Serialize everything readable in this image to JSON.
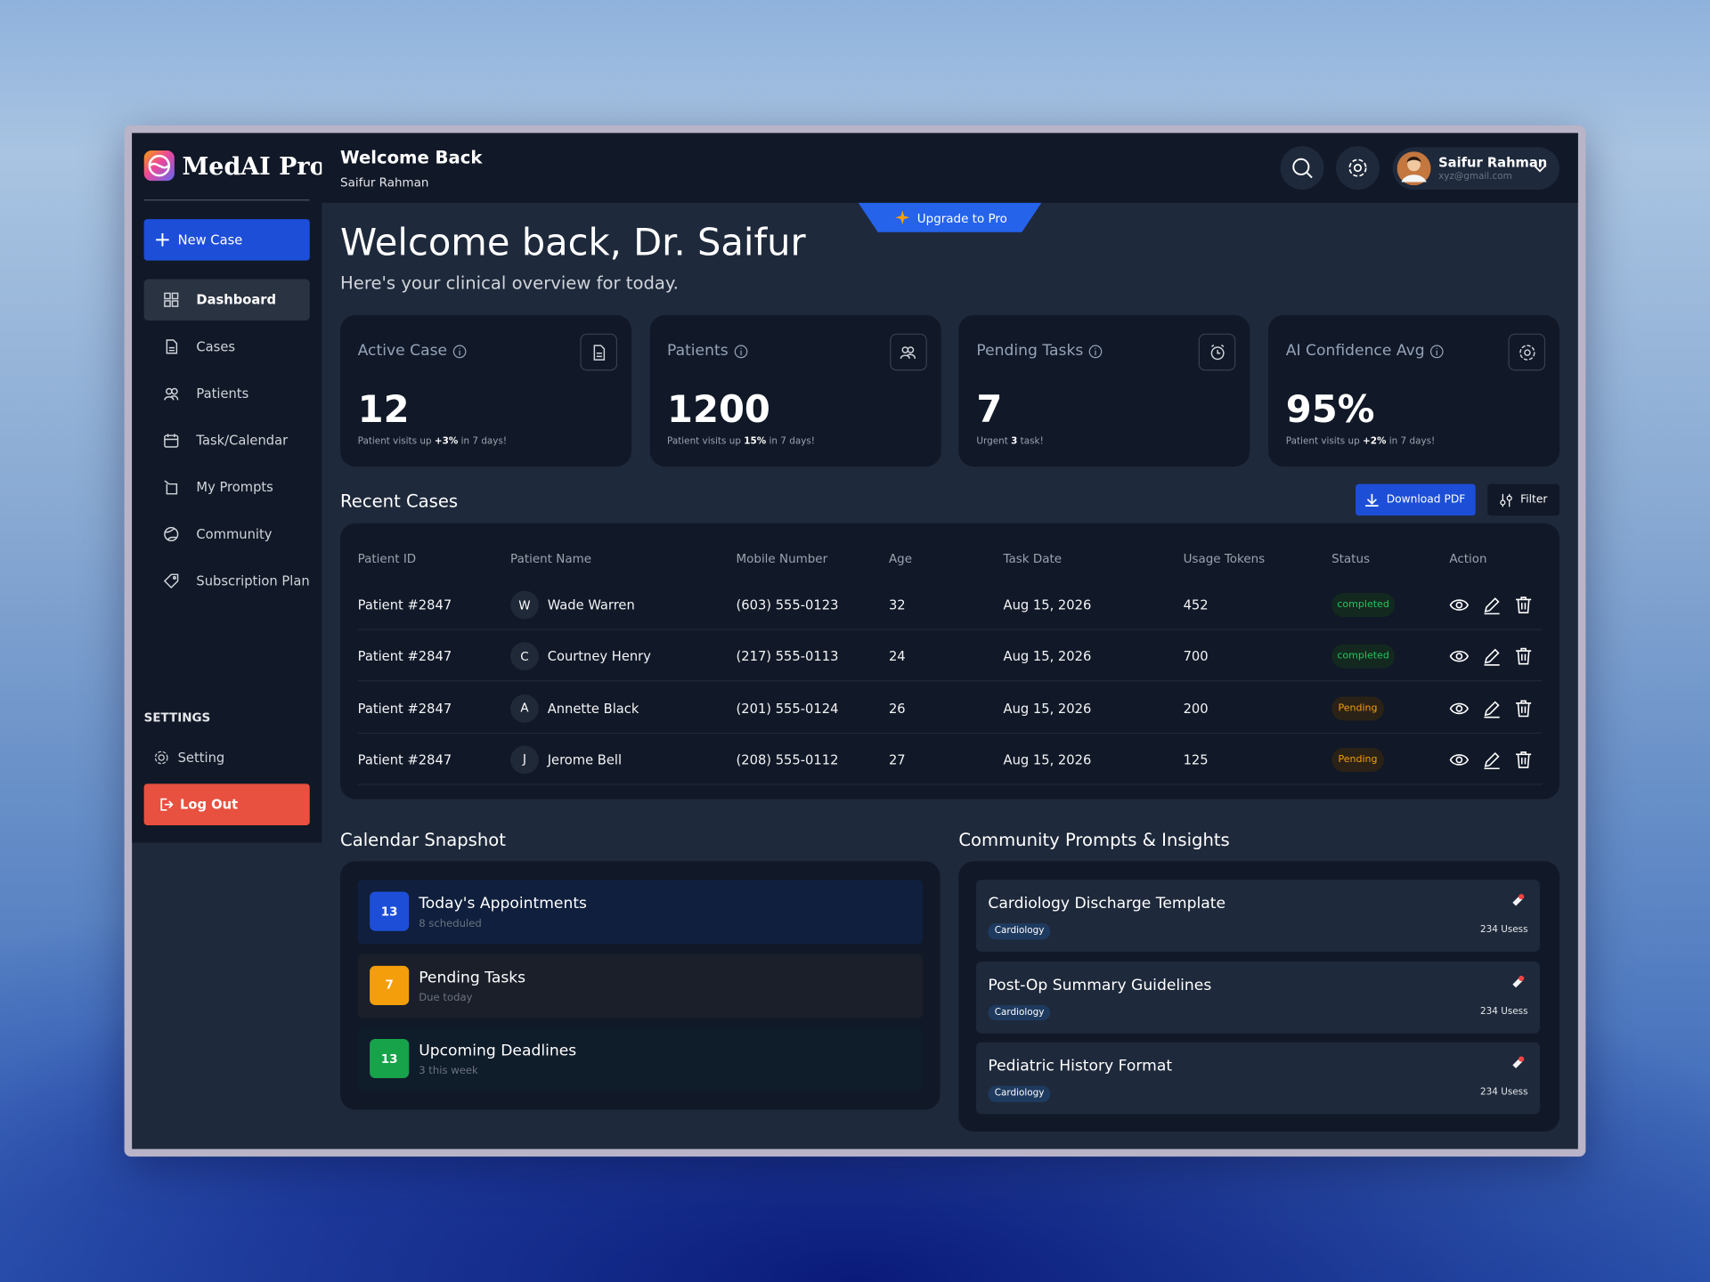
{
  "sidebar": {
    "brand": "MedAI Pro",
    "new_case": "New Case",
    "nav": [
      "Dashboard",
      "Cases",
      "Patients",
      "Task/Calendar",
      "My Prompts",
      "Community",
      "Subscription Plan"
    ],
    "settings_heading": "SETTINGS",
    "settings_item": "Setting",
    "logout": "Log Out"
  },
  "header": {
    "title": "Welcome Back",
    "subtitle": "Saifur Rahman",
    "user_name": "Saifur Rahman",
    "user_email": "xyz@gmail.com",
    "upgrade": "Upgrade to Pro"
  },
  "hero": {
    "title": "Welcome back, Dr. Saifur",
    "subtitle": "Here's your clinical overview for today."
  },
  "stats": [
    {
      "label": "Active Case",
      "value": "12",
      "note": [
        "Patient visits up ",
        "+3%",
        " in 7 days!"
      ]
    },
    {
      "label": "Patients",
      "value": "1200",
      "note": [
        "Patient visits up ",
        "15%",
        " in 7 days!"
      ]
    },
    {
      "label": "Pending Tasks",
      "value": "7",
      "note": [
        "Urgent ",
        "3",
        " task!"
      ]
    },
    {
      "label": "AI Confidence Avg",
      "value": "95%",
      "note": [
        "Patient visits up ",
        "+2%",
        " in 7 days!"
      ]
    }
  ],
  "recent_cases": {
    "title": "Recent Cases",
    "download": "Download PDF",
    "filter": "Filter",
    "columns": [
      "Patient ID",
      "Patient Name",
      "Mobile Number",
      "Age",
      "Task Date",
      "Usage Tokens",
      "Status",
      "Action"
    ],
    "rows": [
      {
        "id": "Patient #2847",
        "initial": "W",
        "name": "Wade Warren",
        "mobile": "(603) 555-0123",
        "age": 32,
        "date": "Aug 15, 2026",
        "tokens": 452,
        "status": "completed"
      },
      {
        "id": "Patient #2847",
        "initial": "C",
        "name": "Courtney Henry",
        "mobile": "(217) 555-0113",
        "age": 24,
        "date": "Aug 15, 2026",
        "tokens": 700,
        "status": "completed"
      },
      {
        "id": "Patient #2847",
        "initial": "A",
        "name": "Annette Black",
        "mobile": "(201) 555-0124",
        "age": 26,
        "date": "Aug 15, 2026",
        "tokens": 200,
        "status": "Pending"
      },
      {
        "id": "Patient #2847",
        "initial": "J",
        "name": "Jerome Bell",
        "mobile": "(208) 555-0112",
        "age": 27,
        "date": "Aug 15, 2026",
        "tokens": 125,
        "status": "Pending"
      }
    ]
  },
  "calendar": {
    "title": "Calendar Snapshot",
    "items": [
      {
        "count": 13,
        "title": "Today's Appointments",
        "detail": "8 scheduled"
      },
      {
        "count": 7,
        "title": "Pending Tasks",
        "detail": "Due today"
      },
      {
        "count": 13,
        "title": "Upcoming Deadlines",
        "detail": "3 this week"
      }
    ]
  },
  "community": {
    "title": "Community Prompts & Insights",
    "items": [
      {
        "title": "Cardiology Discharge Template",
        "tag": "Cardiology",
        "uses": "234 Usess"
      },
      {
        "title": "Post-Op Summary Guidelines",
        "tag": "Cardiology",
        "uses": "234 Usess"
      },
      {
        "title": "Pediatric History Format",
        "tag": "Cardiology",
        "uses": "234 Usess"
      }
    ]
  }
}
